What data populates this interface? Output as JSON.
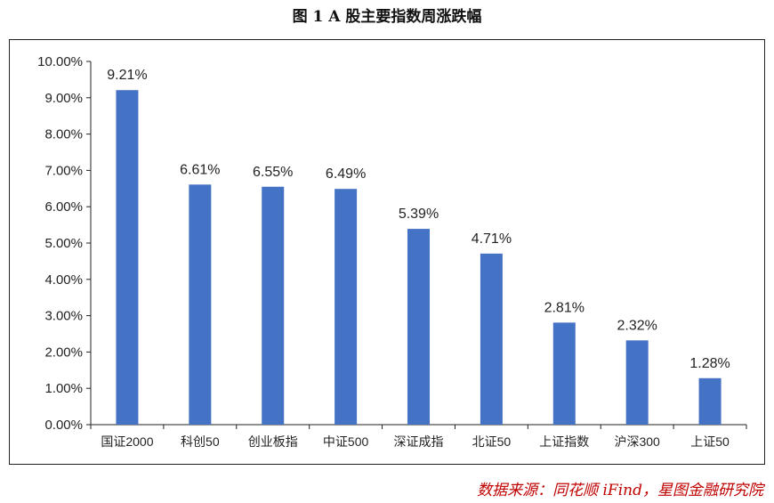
{
  "figure_title": "图 1 A 股主要指数周涨跌幅",
  "source_text": "数据来源：同花顺 iFind，星图金融研究院",
  "colors": {
    "bar": "#4472C4",
    "axis": "#222222"
  },
  "chart_data": {
    "type": "bar",
    "title": "图 1 A 股主要指数周涨跌幅",
    "xlabel": "",
    "ylabel": "",
    "categories": [
      "国证2000",
      "科创50",
      "创业板指",
      "中证500",
      "深证成指",
      "北证50",
      "上证指数",
      "沪深300",
      "上证50"
    ],
    "values": [
      9.21,
      6.61,
      6.55,
      6.49,
      5.39,
      4.71,
      2.81,
      2.32,
      1.28
    ],
    "data_labels": [
      "9.21%",
      "6.61%",
      "6.55%",
      "6.49%",
      "5.39%",
      "4.71%",
      "2.81%",
      "2.32%",
      "1.28%"
    ],
    "ylim": [
      0,
      10
    ],
    "y_ticks": [
      0,
      1,
      2,
      3,
      4,
      5,
      6,
      7,
      8,
      9,
      10
    ],
    "y_tick_labels": [
      "0.00%",
      "1.00%",
      "2.00%",
      "3.00%",
      "4.00%",
      "5.00%",
      "6.00%",
      "7.00%",
      "8.00%",
      "9.00%",
      "10.00%"
    ],
    "grid": false,
    "legend": "none"
  }
}
